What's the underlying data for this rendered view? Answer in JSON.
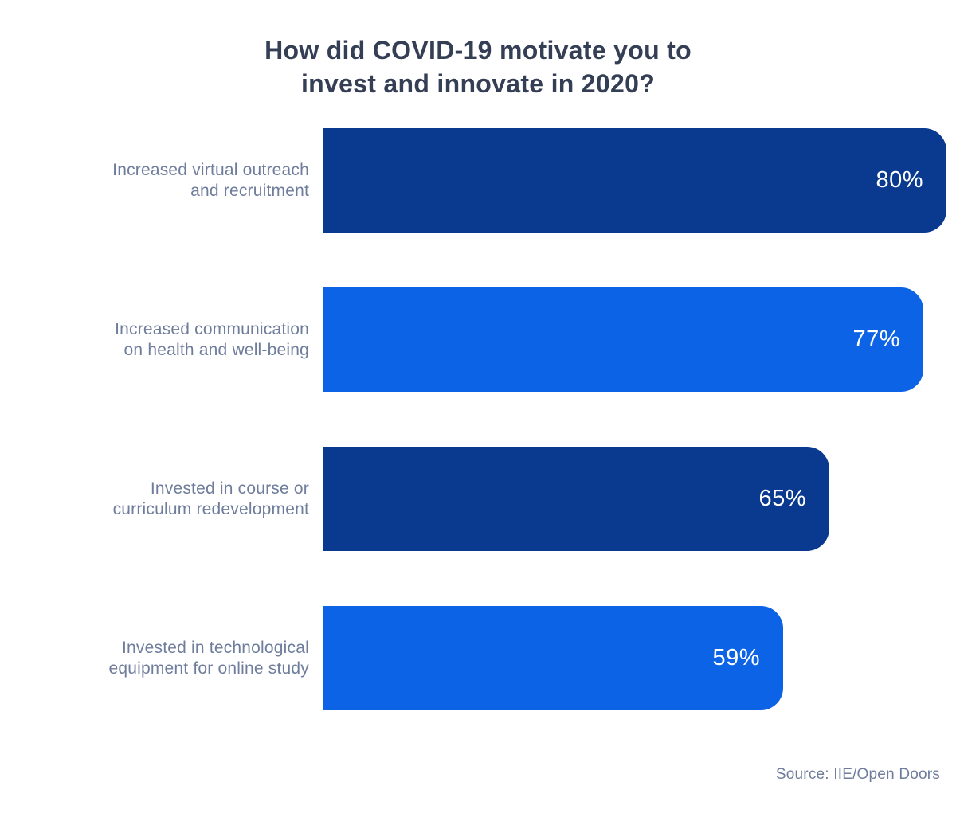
{
  "page": {
    "background": "#ffffff"
  },
  "chart_data": {
    "type": "bar",
    "orientation": "horizontal",
    "title": "How did COVID-19 motivate you to\ninvest and innovate in 2020?",
    "categories": [
      "Increased virtual outreach and recruitment",
      "Increased communication on health and well-being",
      "Invested in course or curriculum redevelopment",
      "Invested in technological equipment for online study"
    ],
    "values": [
      80,
      77,
      65,
      59
    ],
    "xlim": [
      0,
      100
    ],
    "axis_visible": false,
    "grid": false,
    "legend": "none",
    "bars": [
      {
        "label": "Increased virtual outreach\nand recruitment",
        "value": 80,
        "display_value": "80%",
        "color_key": "dark"
      },
      {
        "label": "Increased communication\non health and well-being",
        "value": 77,
        "display_value": "77%",
        "color_key": "light"
      },
      {
        "label": "Invested in course or\ncurriculum redevelopment",
        "value": 65,
        "display_value": "65%",
        "color_key": "dark"
      },
      {
        "label": "Invested in technological\nequipment for online study",
        "value": 59,
        "display_value": "59%",
        "color_key": "light"
      }
    ],
    "colors": {
      "dark": "#093a90",
      "light": "#0c63e6",
      "title_text": "#343e54",
      "label_text": "#6f7d9c",
      "value_text": "#ffffff"
    },
    "source": "Source: IIE/Open Doors"
  }
}
